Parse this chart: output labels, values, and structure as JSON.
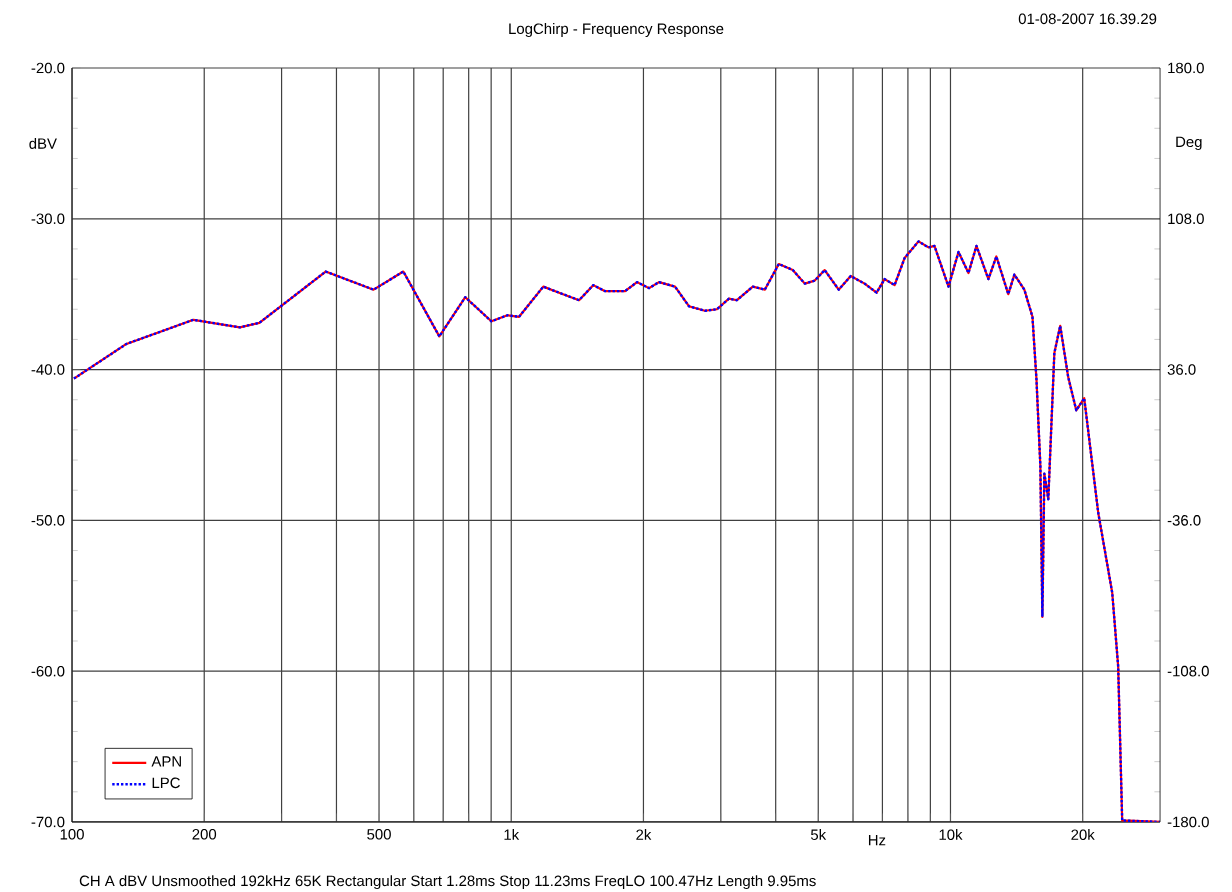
{
  "chart_data": {
    "type": "line",
    "title": "LogChirp - Frequency Response",
    "xlabel": "Hz",
    "ylabel": "dBV",
    "y2label": "Deg",
    "annotations": [
      "01-08-2007 16.39.29",
      "CH A   dBV   Unsmoothed   192kHz   65K   Rectangular   Start 1.28ms   Stop 11.23ms   FreqLO 100.47Hz   Length 9.95ms"
    ],
    "log": "x",
    "grid": true,
    "legend": "bottom left",
    "xlim": [
      100,
      30000
    ],
    "ylim": [
      -70,
      -20
    ],
    "y2lim": [
      -180,
      180
    ],
    "xticks": [
      100,
      200,
      {
        "value": 300,
        "label": null
      },
      {
        "value": 400,
        "label": null
      },
      500,
      {
        "value": 600,
        "label": null
      },
      {
        "value": 700,
        "label": null
      },
      {
        "value": 800,
        "label": null
      },
      {
        "value": 900,
        "label": null
      },
      {
        "value": 1000,
        "label": "1k"
      },
      {
        "value": 2000,
        "label": "2k"
      },
      {
        "value": 3000,
        "label": null
      },
      {
        "value": 4000,
        "label": null
      },
      {
        "value": 5000,
        "label": "5k"
      },
      {
        "value": 6000,
        "label": null
      },
      {
        "value": 7000,
        "label": null
      },
      {
        "value": 8000,
        "label": null
      },
      {
        "value": 9000,
        "label": null
      },
      {
        "value": 10000,
        "label": "10k"
      },
      {
        "value": 20000,
        "label": "20k"
      }
    ],
    "yticks": [
      {
        "value": -70,
        "label": "-70.0"
      },
      {
        "value": -60,
        "label": "-60.0"
      },
      {
        "value": -50,
        "label": "-50.0"
      },
      {
        "value": -40,
        "label": "-40.0"
      },
      {
        "value": -30,
        "label": "-30.0"
      },
      {
        "value": -20,
        "label": "-20.0"
      }
    ],
    "y2ticks": [
      {
        "value": -180,
        "label": "-180.0"
      },
      {
        "value": -108,
        "label": "-108.0"
      },
      {
        "value": -36,
        "label": "-36.0"
      },
      {
        "value": 36,
        "label": "36.0"
      },
      {
        "value": 108,
        "label": "108.0"
      },
      {
        "value": 180,
        "label": "180.0"
      }
    ],
    "x": [
      101,
      133,
      189,
      241,
      267,
      378,
      486,
      568,
      686,
      786,
      901,
      980,
      1042,
      1183,
      1285,
      1427,
      1537,
      1636,
      1816,
      1934,
      2059,
      2170,
      2360,
      2538,
      2760,
      2939,
      3131,
      3264,
      3548,
      3778,
      4066,
      4375,
      4660,
      4909,
      5172,
      5566,
      5928,
      6377,
      6790,
      7079,
      7462,
      7864,
      8458,
      8913,
      9196,
      9897,
      10430,
      10990,
      11460,
      12200,
      12720,
      13540,
      13980,
      14730,
      15370,
      15700,
      16020,
      16190,
      16360,
      16700,
      17240,
      17780,
      18540,
      19340,
      20160,
      21700,
      23350,
      24090,
      24600,
      30000
    ],
    "series": [
      {
        "name": "APN",
        "color": "#ff0000",
        "line_style": "solid",
        "values": [
          -40.6,
          -38.3,
          -36.7,
          -37.2,
          -36.9,
          -33.5,
          -34.7,
          -33.5,
          -37.8,
          -35.2,
          -36.8,
          -36.4,
          -36.5,
          -34.5,
          -34.9,
          -35.4,
          -34.4,
          -34.8,
          -34.8,
          -34.2,
          -34.6,
          -34.2,
          -34.5,
          -35.8,
          -36.1,
          -36.0,
          -35.3,
          -35.4,
          -34.5,
          -34.7,
          -33.0,
          -33.4,
          -34.3,
          -34.1,
          -33.4,
          -34.7,
          -33.8,
          -34.3,
          -34.9,
          -34.0,
          -34.4,
          -32.6,
          -31.5,
          -31.9,
          -31.8,
          -34.5,
          -32.2,
          -33.6,
          -31.8,
          -34.0,
          -32.5,
          -35.0,
          -33.7,
          -34.7,
          -36.5,
          -40.7,
          -46.4,
          -56.4,
          -46.9,
          -48.6,
          -38.9,
          -37.1,
          -40.5,
          -42.7,
          -41.9,
          -49.5,
          -54.8,
          -59.7,
          -69.9,
          -70
        ]
      },
      {
        "name": "LPC",
        "color": "#0000ff",
        "line_style": "dotted",
        "values": [
          -40.6,
          -38.3,
          -36.7,
          -37.2,
          -36.9,
          -33.5,
          -34.7,
          -33.5,
          -37.8,
          -35.2,
          -36.8,
          -36.4,
          -36.5,
          -34.5,
          -34.9,
          -35.4,
          -34.4,
          -34.8,
          -34.8,
          -34.2,
          -34.6,
          -34.2,
          -34.5,
          -35.8,
          -36.1,
          -36.0,
          -35.3,
          -35.4,
          -34.5,
          -34.7,
          -33.0,
          -33.4,
          -34.3,
          -34.1,
          -33.4,
          -34.7,
          -33.8,
          -34.3,
          -34.9,
          -34.0,
          -34.4,
          -32.6,
          -31.5,
          -31.9,
          -31.8,
          -34.5,
          -32.2,
          -33.6,
          -31.8,
          -34.0,
          -32.5,
          -35.0,
          -33.7,
          -34.7,
          -36.5,
          -40.7,
          -46.4,
          -56.4,
          -46.9,
          -48.6,
          -38.9,
          -37.1,
          -40.5,
          -42.7,
          -41.9,
          -49.5,
          -54.8,
          -59.7,
          -69.9,
          -70
        ]
      }
    ]
  }
}
